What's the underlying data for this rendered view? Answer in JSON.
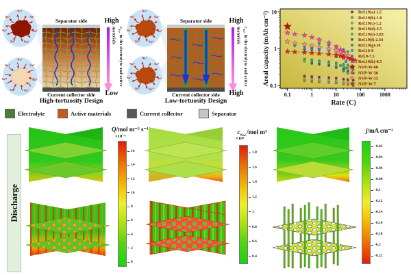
{
  "figure": {
    "ion_label": "Na⁺",
    "discharge_label": "Discharge",
    "conc_symbol": "c",
    "conc_sub": "Na+",
    "conc_rest": " in the electrolyte and active materials",
    "high_panel": {
      "separator_label": "Separator side",
      "collector_label": "Current collector side",
      "title": "High-tortuosity Design",
      "top": "High",
      "bottom": "Low"
    },
    "low_panel": {
      "separator_label": "Separator side",
      "collector_label": "Current collector side",
      "title": "Low-tortuosity Design",
      "top": "High",
      "bottom": "High"
    },
    "materials_legend": [
      {
        "label": "Electrolyte",
        "color": "#4e7c33"
      },
      {
        "label": "Active materials",
        "color": "#c75a1e"
      },
      {
        "label": "Current collector",
        "color": "#575757"
      },
      {
        "label": "Separator",
        "color": "#c6c6c6"
      }
    ]
  },
  "chart_data": {
    "type": "scatter",
    "xlabel": "Rate (C)",
    "ylabel": "Areal capacity (mAh cm⁻²)",
    "x_scale": "log",
    "y_scale": "log",
    "xlim": [
      0.05,
      8000
    ],
    "ylim": [
      0.085,
      12
    ],
    "x_ticks": [
      0.1,
      1,
      10,
      100,
      1000
    ],
    "y_ticks": [
      0.1,
      1,
      10
    ],
    "grid": false,
    "legend_position": "inside-top-right",
    "background": [
      "#c8b73c",
      "#f8f2ac"
    ],
    "series": [
      {
        "name": "Ref.19(a)-1.5",
        "color": "#8e2a5a",
        "marker": "dot",
        "line_color": "#c6d0e0",
        "points": [
          [
            0.5,
            0.18
          ],
          [
            1,
            0.175
          ],
          [
            2,
            0.17
          ],
          [
            5,
            0.165
          ],
          [
            10,
            0.16
          ],
          [
            20,
            0.15
          ],
          [
            30,
            0.145
          ],
          [
            50,
            0.14
          ]
        ]
      },
      {
        "name": "Ref.19(b)-1.8",
        "color": "#9a8a20",
        "marker": "dot",
        "line_color": "#c6d0e0",
        "points": [
          [
            0.5,
            0.135
          ],
          [
            1,
            0.13
          ],
          [
            2,
            0.127
          ],
          [
            5,
            0.122
          ],
          [
            10,
            0.118
          ],
          [
            20,
            0.112
          ],
          [
            30,
            0.108
          ],
          [
            50,
            0.1
          ]
        ]
      },
      {
        "name": "Ref.19(c)-1.2",
        "color": "#b8a43c",
        "marker": "dot",
        "line_color": "#c6d0e0",
        "points": [
          [
            0.5,
            0.155
          ],
          [
            1,
            0.15
          ],
          [
            2,
            0.145
          ],
          [
            5,
            0.14
          ],
          [
            10,
            0.135
          ],
          [
            20,
            0.125
          ],
          [
            30,
            0.12
          ],
          [
            50,
            0.115
          ]
        ]
      },
      {
        "name": "Ref.19(d)-3.5",
        "color": "#4aa32a",
        "marker": "dot",
        "line_color": "#c6d0e0",
        "points": [
          [
            0.5,
            0.52
          ],
          [
            1,
            0.5
          ],
          [
            2,
            0.47
          ],
          [
            5,
            0.44
          ],
          [
            10,
            0.41
          ],
          [
            20,
            0.38
          ],
          [
            30,
            0.36
          ],
          [
            50,
            0.33
          ]
        ]
      },
      {
        "name": "Ref.19(e)-3.83",
        "color": "#66b43c",
        "marker": "dot",
        "line_color": "#c6d0e0",
        "points": [
          [
            0.5,
            0.46
          ],
          [
            1,
            0.44
          ],
          [
            2,
            0.42
          ],
          [
            5,
            0.39
          ],
          [
            10,
            0.36
          ],
          [
            20,
            0.33
          ],
          [
            30,
            0.3
          ],
          [
            50,
            0.27
          ]
        ]
      },
      {
        "name": "Ref.19(f)-2.34",
        "color": "#2a7a2a",
        "marker": "dot",
        "line_color": "#c6d0e0",
        "points": [
          [
            1,
            0.4
          ],
          [
            2,
            0.38
          ],
          [
            5,
            0.35
          ],
          [
            10,
            0.31
          ],
          [
            20,
            0.28
          ],
          [
            30,
            0.25
          ],
          [
            50,
            0.22
          ]
        ]
      },
      {
        "name": "Ref.19(g)-10",
        "color": "#2a9a8a",
        "marker": "dot",
        "line_color": "#c6d0e0",
        "points": [
          [
            0.2,
            1.2
          ],
          [
            0.5,
            1.15
          ],
          [
            1,
            1.1
          ],
          [
            2,
            1.05
          ],
          [
            5,
            1.0
          ],
          [
            10,
            0.6
          ],
          [
            15,
            0.35
          ],
          [
            20,
            0.25
          ]
        ]
      },
      {
        "name": "Ref.10-8",
        "color": "#2aa0c8",
        "marker": "dot",
        "line_color": "#c6d0e0",
        "points": [
          [
            0.5,
            0.95
          ],
          [
            1,
            0.94
          ],
          [
            2,
            0.93
          ],
          [
            5,
            0.9
          ],
          [
            10,
            0.87
          ],
          [
            20,
            0.55
          ],
          [
            25,
            0.3
          ]
        ]
      },
      {
        "name": "Ref.9-7.5",
        "color": "#3a78d0",
        "marker": "dot",
        "line_color": "#c6d0e0",
        "points": [
          [
            0.5,
            0.98
          ],
          [
            1,
            0.97
          ],
          [
            2,
            0.96
          ],
          [
            5,
            0.94
          ],
          [
            10,
            0.9
          ],
          [
            15,
            0.87
          ],
          [
            25,
            0.45
          ],
          [
            30,
            0.22
          ]
        ]
      },
      {
        "name": "Ref.19(h)-8.5",
        "color": "#4a7ab5",
        "marker": "dot",
        "line_color": "#c6d0e0",
        "points": [
          [
            2,
            1.4
          ],
          [
            5,
            1.25
          ],
          [
            10,
            1.1
          ],
          [
            20,
            0.95
          ],
          [
            30,
            0.85
          ]
        ]
      },
      {
        "name": "NVP-W-60",
        "color": "#b50d0d",
        "marker": "star",
        "marker_size": 6,
        "line_color": "",
        "points": [
          [
            0.1,
            4.0
          ]
        ]
      },
      {
        "name": "NVP-W-30",
        "color": "#f93ccb",
        "marker": "star",
        "marker_size": 4,
        "line_color": "#8fd14f",
        "line_dash": "3,2",
        "points": [
          [
            0.1,
            2.7
          ],
          [
            0.2,
            2.5
          ],
          [
            0.5,
            2.3
          ],
          [
            1,
            2.05
          ],
          [
            2,
            1.75
          ],
          [
            5,
            1.45
          ],
          [
            10,
            1.15
          ],
          [
            15,
            0.95
          ],
          [
            20,
            0.8
          ],
          [
            30,
            0.65
          ]
        ]
      },
      {
        "name": "NVP-W-15",
        "color": "#fb8f8f",
        "marker": "star",
        "marker_size": 4,
        "line_color": "#8fd14f",
        "line_dash": "3,2",
        "points": [
          [
            0.1,
            1.55
          ],
          [
            0.2,
            1.42
          ],
          [
            0.5,
            1.3
          ],
          [
            1,
            1.2
          ],
          [
            2,
            1.12
          ],
          [
            5,
            1.0
          ],
          [
            10,
            0.9
          ],
          [
            15,
            0.8
          ],
          [
            20,
            0.72
          ],
          [
            30,
            0.65
          ]
        ]
      },
      {
        "name": "NVP-W-7",
        "color": "#ee1c1c",
        "marker": "star",
        "marker_size": 4,
        "line_color": "#3aa83a",
        "line_dash": "3,2",
        "points": [
          [
            0.1,
            0.84
          ],
          [
            0.2,
            0.82
          ],
          [
            0.5,
            0.79
          ],
          [
            1,
            0.77
          ],
          [
            2,
            0.74
          ],
          [
            5,
            0.71
          ],
          [
            10,
            0.68
          ],
          [
            15,
            0.64
          ],
          [
            20,
            0.6
          ],
          [
            30,
            0.56
          ],
          [
            40,
            0.53
          ],
          [
            50,
            0.5
          ],
          [
            60,
            0.47
          ]
        ]
      }
    ]
  },
  "colorbars": [
    {
      "symbol": "Q",
      "sub": "",
      "unit": "/mol m⁻² s⁻¹",
      "scale": "×10⁻⁵",
      "direction": "red-top",
      "ticks": [
        "16",
        "14",
        "12",
        "10",
        "8",
        "6",
        "4",
        "2",
        "0"
      ]
    },
    {
      "symbol": "c",
      "sub": "Na+",
      "unit": "/mol m³",
      "scale": "×10³",
      "direction": "red-top",
      "ticks": [
        "1.8",
        "1.6",
        "1.4",
        "1.2",
        "1",
        "0.8",
        "0.6",
        "0.4"
      ]
    },
    {
      "symbol": "j",
      "sub": "",
      "unit": "/mA cm⁻²",
      "scale": "",
      "direction": "green-top",
      "ticks": [
        "-0.02",
        "-0.04",
        "-0.06",
        "-0.08",
        "-0.1",
        "-0.12",
        "-0.14",
        "-0.16",
        "-0.18",
        "-0.2",
        "-0.22"
      ]
    }
  ]
}
